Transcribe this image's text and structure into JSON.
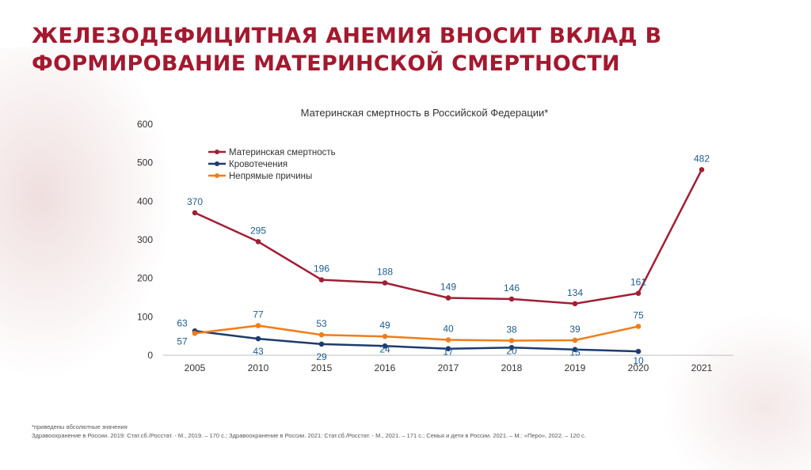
{
  "slide": {
    "title": "ЖЕЛЕЗОДЕФИЦИТНАЯ АНЕМИЯ ВНОСИТ ВКЛАД В ФОРМИРОВАНИЕ МАТЕРИНСКОЙ СМЕРТНОСТИ",
    "footnote_line1": "*приведены абсолютные значения",
    "footnote_line2": "Здравоохранение в России. 2019: Стат.сб./Росстат. - М., 2019. – 170 с.; Здравоохранение в России. 2021: Стат.сб./Росстат. - М., 2021. – 171 с.; Семья и дети в России. 2021. – М.: «Перо», 2022. – 120 с."
  },
  "chart_data": {
    "type": "line",
    "title": "Материнская смертность в Российской Федерации*",
    "categories": [
      "2005",
      "2010",
      "2015",
      "2016",
      "2017",
      "2018",
      "2019",
      "2020",
      "2021"
    ],
    "y_ticks": [
      "0",
      "100",
      "200",
      "300",
      "400",
      "500",
      "600"
    ],
    "ylim": [
      0,
      600
    ],
    "legend_position": "top-left",
    "series": [
      {
        "name": "Материнская смертность",
        "color": "#a01f36",
        "values": [
          370,
          295,
          196,
          188,
          149,
          146,
          134,
          161,
          482
        ]
      },
      {
        "name": "Кровотечения",
        "color": "#1c3b6e",
        "values": [
          63,
          43,
          29,
          24,
          17,
          20,
          15,
          10,
          null
        ]
      },
      {
        "name": "Непрямые причины",
        "color": "#f07d1a",
        "values": [
          57,
          77,
          53,
          49,
          40,
          38,
          39,
          75,
          null
        ]
      }
    ]
  }
}
